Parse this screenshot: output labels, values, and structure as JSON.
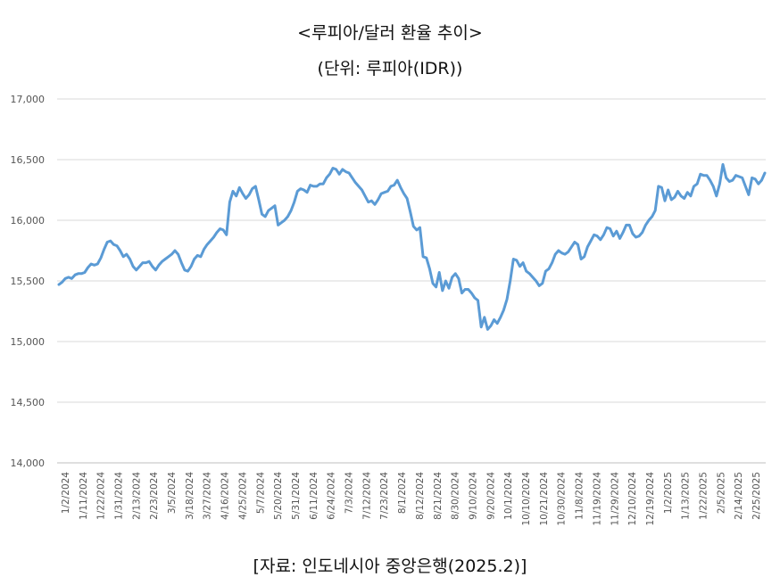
{
  "chart_data": {
    "type": "line",
    "title": "<루피아/달러 환율 추이>",
    "subtitle": "(단위: 루피아(IDR))",
    "source": "[자료: 인도네시아 중앙은행(2025.2)]",
    "xlabel": "",
    "ylabel": "",
    "ylim": [
      14000,
      17000
    ],
    "yticks": [
      "14,000",
      "14,500",
      "15,000",
      "15,500",
      "16,000",
      "16,500",
      "17,000"
    ],
    "ytick_values": [
      14000,
      14500,
      15000,
      15500,
      16000,
      16500,
      17000
    ],
    "grid": true,
    "legend": "none",
    "line_color": "#5b9bd5",
    "x_tick_labels": [
      "1/2/2024",
      "1/11/2024",
      "1/22/2024",
      "1/31/2024",
      "2/13/2024",
      "2/23/2024",
      "3/5/2024",
      "3/18/2024",
      "3/27/2024",
      "4/16/2024",
      "4/25/2024",
      "5/7/2024",
      "5/20/2024",
      "5/31/2024",
      "6/11/2024",
      "6/24/2024",
      "7/3/2024",
      "7/12/2024",
      "7/23/2024",
      "8/1/2024",
      "8/12/2024",
      "8/21/2024",
      "8/30/2024",
      "9/10/2024",
      "9/20/2024",
      "10/1/2024",
      "10/10/2024",
      "10/21/2024",
      "10/30/2024",
      "11/8/2024",
      "11/19/2024",
      "11/29/2024",
      "12/10/2024",
      "12/19/2024",
      "1/2/2025",
      "1/13/2025",
      "1/22/2025",
      "2/5/2025",
      "2/14/2025",
      "2/25/2025"
    ],
    "series": [
      {
        "values": [
          15470,
          15490,
          15520,
          15530,
          15520,
          15550,
          15560,
          15560,
          15570,
          15610,
          15640,
          15630,
          15640,
          15690,
          15760,
          15820,
          15830,
          15800,
          15790,
          15750,
          15700,
          15720,
          15680,
          15620,
          15590,
          15620,
          15650,
          15650,
          15660,
          15620,
          15590,
          15630,
          15660,
          15680,
          15700,
          15720,
          15750,
          15720,
          15650,
          15590,
          15580,
          15620,
          15680,
          15710,
          15700,
          15760,
          15800,
          15830,
          15860,
          15900,
          15930,
          15920,
          15880,
          16150,
          16240,
          16200,
          16270,
          16220,
          16180,
          16210,
          16260,
          16280,
          16170,
          16050,
          16030,
          16080,
          16100,
          16120,
          15960,
          15980,
          16000,
          16030,
          16080,
          16150,
          16240,
          16260,
          16250,
          16230,
          16290,
          16280,
          16280,
          16300,
          16300,
          16350,
          16380,
          16430,
          16420,
          16380,
          16420,
          16400,
          16390,
          16350,
          16310,
          16280,
          16250,
          16200,
          16150,
          16160,
          16130,
          16170,
          16220,
          16230,
          16240,
          16280,
          16290,
          16330,
          16270,
          16220,
          16180,
          16070,
          15950,
          15920,
          15940,
          15700,
          15690,
          15600,
          15480,
          15450,
          15570,
          15420,
          15500,
          15440,
          15530,
          15560,
          15520,
          15400,
          15430,
          15430,
          15400,
          15360,
          15340,
          15120,
          15200,
          15100,
          15130,
          15180,
          15150,
          15200,
          15260,
          15350,
          15500,
          15680,
          15670,
          15620,
          15650,
          15580,
          15560,
          15530,
          15500,
          15460,
          15480,
          15580,
          15600,
          15650,
          15720,
          15750,
          15730,
          15720,
          15740,
          15780,
          15820,
          15800,
          15680,
          15700,
          15780,
          15830,
          15880,
          15870,
          15840,
          15880,
          15940,
          15930,
          15870,
          15910,
          15850,
          15900,
          15960,
          15960,
          15890,
          15860,
          15870,
          15900,
          15960,
          16000,
          16030,
          16080,
          16280,
          16270,
          16160,
          16250,
          16170,
          16190,
          16240,
          16200,
          16180,
          16230,
          16200,
          16280,
          16300,
          16380,
          16370,
          16370,
          16330,
          16280,
          16200,
          16300,
          16460,
          16350,
          16320,
          16330,
          16370,
          16360,
          16350,
          16280,
          16210,
          16350,
          16340,
          16300,
          16330,
          16390
        ]
      }
    ]
  }
}
